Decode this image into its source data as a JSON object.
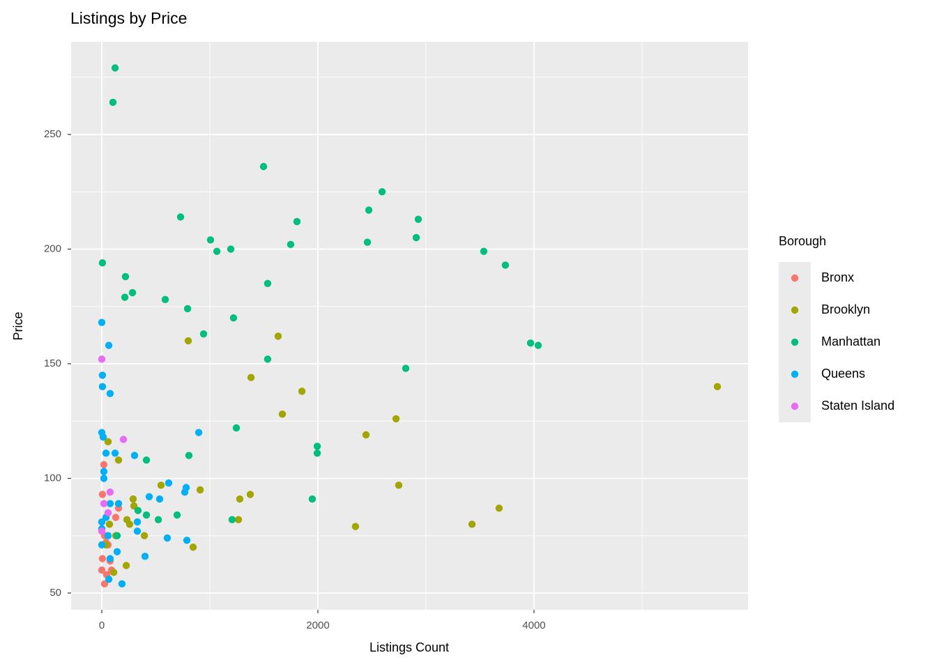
{
  "chart_data": {
    "type": "scatter",
    "title": "Listings by Price",
    "x_label": "Listings Count",
    "y_label": "Price",
    "legend_title": "Borough",
    "legend_position": "right",
    "grid": true,
    "xlim": [
      -284,
      5981
    ],
    "xticks": [
      0,
      2000,
      4000
    ],
    "ylim": [
      42.7,
      290.4
    ],
    "yticks": [
      50,
      100,
      150,
      200,
      250
    ],
    "series": [
      {
        "name": "Bronx",
        "color": "#F8766D",
        "x": [
          19,
          6,
          155,
          129,
          39,
          58,
          6,
          0,
          45,
          26,
          90,
          77,
          26
        ],
        "values": [
          106,
          93,
          87,
          83,
          72,
          71,
          65,
          60,
          58,
          54,
          60,
          64,
          75
        ]
      },
      {
        "name": "Brooklyn",
        "color": "#A3A500",
        "x": [
          5697,
          1852,
          800,
          1632,
          1381,
          1671,
          2723,
          2445,
          58,
          155,
          548,
          2748,
          910,
          1374,
          1277,
          290,
          297,
          3677,
          3426,
          2348,
          1265,
          258,
          394,
          845,
          226,
          129,
          110,
          39,
          232,
          71
        ],
        "values": [
          140,
          138,
          160,
          162,
          144,
          128,
          126,
          119,
          116,
          108,
          97,
          97,
          95,
          93,
          91,
          91,
          88,
          87,
          80,
          79,
          82,
          80,
          75,
          70,
          62,
          75,
          59,
          71,
          82,
          80
        ]
      },
      {
        "name": "Manhattan",
        "color": "#00BF7D",
        "x": [
          123,
          103,
          1497,
          2594,
          729,
          2471,
          1806,
          2929,
          1006,
          2458,
          2910,
          1194,
          1065,
          1748,
          3535,
          3735,
          6,
          219,
          1535,
          284,
          213,
          587,
          794,
          1219,
          942,
          1535,
          3968,
          4039,
          2813,
          1245,
          1994,
          1994,
          806,
          413,
          1948,
          1206,
          523,
          697,
          413,
          335,
          142
        ],
        "values": [
          279,
          264,
          236,
          225,
          214,
          217,
          212,
          213,
          204,
          203,
          205,
          200,
          199,
          202,
          199,
          193,
          194,
          188,
          185,
          181,
          179,
          178,
          174,
          170,
          163,
          152,
          159,
          158,
          148,
          122,
          114,
          111,
          110,
          108,
          91,
          82,
          82,
          84,
          84,
          86,
          75
        ]
      },
      {
        "name": "Queens",
        "color": "#00B0F6",
        "x": [
          0,
          65,
          6,
          6,
          77,
          0,
          13,
          897,
          39,
          123,
          303,
          619,
          19,
          19,
          781,
          768,
          439,
          535,
          77,
          155,
          329,
          329,
          606,
          787,
          400,
          187,
          65,
          142,
          77,
          0,
          0,
          39,
          0,
          58
        ],
        "values": [
          168,
          158,
          145,
          140,
          137,
          120,
          118,
          120,
          111,
          111,
          110,
          98,
          103,
          100,
          96,
          94,
          92,
          91,
          89,
          89,
          81,
          77,
          74,
          73,
          66,
          54,
          56,
          68,
          65,
          71,
          78,
          83,
          81,
          75
        ]
      },
      {
        "name": "Staten Island",
        "color": "#E76BF3",
        "x": [
          0,
          200,
          77,
          19,
          58,
          0
        ],
        "values": [
          152,
          117,
          94,
          89,
          85,
          77
        ]
      }
    ]
  }
}
